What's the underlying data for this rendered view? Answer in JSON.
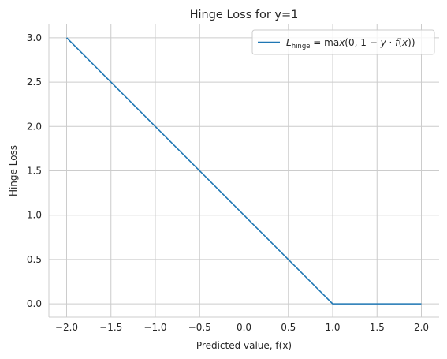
{
  "chart_data": {
    "type": "line",
    "title": "Hinge Loss for y=1",
    "xlabel": "Predicted value, f(x)",
    "ylabel": "Hinge Loss",
    "xlim": [
      -2.2,
      2.2
    ],
    "ylim": [
      -0.15,
      3.15
    ],
    "xticks": [
      -2.0,
      -1.5,
      -1.0,
      -0.5,
      0.0,
      0.5,
      1.0,
      1.5,
      2.0
    ],
    "xtick_labels": [
      "−2.0",
      "−1.5",
      "−1.0",
      "−0.5",
      "0.0",
      "0.5",
      "1.0",
      "1.5",
      "2.0"
    ],
    "yticks": [
      0.0,
      0.5,
      1.0,
      1.5,
      2.0,
      2.5,
      3.0
    ],
    "ytick_labels": [
      "0.0",
      "0.5",
      "1.0",
      "1.5",
      "2.0",
      "2.5",
      "3.0"
    ],
    "grid": true,
    "legend_position": "top-right",
    "series": [
      {
        "name": "L_hinge = max(0, 1 − y · f(x))",
        "color": "#1f77b4",
        "x": [
          -2.0,
          1.0,
          2.0
        ],
        "y": [
          3.0,
          0.0,
          0.0
        ]
      }
    ]
  }
}
